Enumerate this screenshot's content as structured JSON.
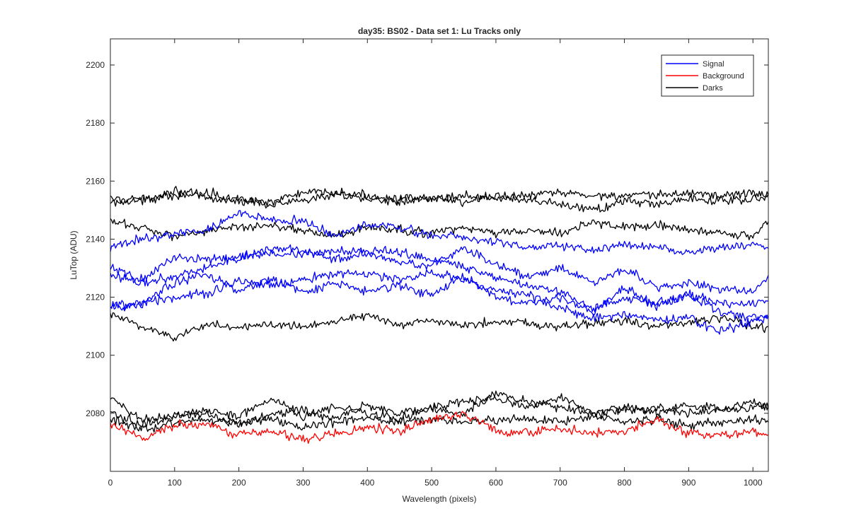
{
  "chart_data": {
    "type": "line",
    "title": "day35: BS02 - Data set 1: Lu Tracks only",
    "xlabel": "Wavelength (pixels)",
    "ylabel": "LuTop (ADU)",
    "xlim": [
      0,
      1024
    ],
    "ylim": [
      2060,
      2209
    ],
    "xticks": [
      0,
      100,
      200,
      300,
      400,
      500,
      600,
      700,
      800,
      900,
      1000
    ],
    "yticks": [
      2080,
      2100,
      2120,
      2140,
      2160,
      2180,
      2200
    ],
    "grid": false,
    "legend_position": "top-right",
    "legend": [
      {
        "name": "Signal",
        "color": "#0000ff"
      },
      {
        "name": "Background",
        "color": "#ff0000"
      },
      {
        "name": "Darks",
        "color": "#000000"
      }
    ],
    "x": [
      0,
      50,
      100,
      150,
      200,
      250,
      300,
      350,
      400,
      450,
      500,
      550,
      600,
      650,
      700,
      750,
      800,
      850,
      900,
      950,
      1000,
      1024
    ],
    "series": [
      {
        "group": "Darks",
        "color": "#000000",
        "values": [
          2154,
          2153,
          2157,
          2154,
          2153,
          2153,
          2156,
          2156,
          2155,
          2154,
          2154,
          2155,
          2154,
          2155,
          2156,
          2155,
          2155,
          2155,
          2156,
          2155,
          2156,
          2155
        ]
      },
      {
        "group": "Darks",
        "color": "#000000",
        "values": [
          2152,
          2154,
          2155,
          2156,
          2154,
          2152,
          2153,
          2155,
          2154,
          2153,
          2154,
          2153,
          2155,
          2153,
          2152,
          2150,
          2153,
          2152,
          2154,
          2153,
          2154,
          2155
        ]
      },
      {
        "group": "Darks",
        "color": "#000000",
        "values": [
          2146,
          2144,
          2141,
          2143,
          2144,
          2145,
          2143,
          2141,
          2144,
          2143,
          2142,
          2144,
          2142,
          2143,
          2142,
          2146,
          2144,
          2145,
          2143,
          2142,
          2141,
          2146
        ]
      },
      {
        "group": "Darks",
        "color": "#000000",
        "values": [
          2114,
          2110,
          2106,
          2111,
          2109,
          2111,
          2110,
          2112,
          2114,
          2110,
          2112,
          2110,
          2112,
          2111,
          2110,
          2111,
          2112,
          2110,
          2111,
          2113,
          2110,
          2109
        ]
      },
      {
        "group": "Darks",
        "color": "#000000",
        "values": [
          2085,
          2078,
          2079,
          2080,
          2076,
          2080,
          2081,
          2078,
          2083,
          2080,
          2082,
          2084,
          2085,
          2082,
          2086,
          2080,
          2081,
          2082,
          2080,
          2081,
          2082,
          2083
        ]
      },
      {
        "group": "Darks",
        "color": "#000000",
        "values": [
          2080,
          2076,
          2079,
          2081,
          2079,
          2085,
          2079,
          2082,
          2080,
          2078,
          2082,
          2080,
          2087,
          2084,
          2082,
          2080,
          2082,
          2080,
          2083,
          2081,
          2084,
          2082
        ]
      },
      {
        "group": "Darks",
        "color": "#000000",
        "values": [
          2078,
          2074,
          2077,
          2078,
          2077,
          2078,
          2075,
          2077,
          2078,
          2077,
          2078,
          2077,
          2078,
          2078,
          2077,
          2079,
          2077,
          2078,
          2076,
          2077,
          2078,
          2077
        ]
      },
      {
        "group": "Background",
        "color": "#ff0000",
        "values": [
          2076,
          2071,
          2076,
          2076,
          2073,
          2074,
          2071,
          2073,
          2075,
          2074,
          2078,
          2080,
          2074,
          2073,
          2075,
          2073,
          2074,
          2078,
          2073,
          2072,
          2074,
          2072
        ]
      },
      {
        "group": "Signal",
        "color": "#0000ff",
        "values": [
          2137,
          2140,
          2142,
          2143,
          2149,
          2147,
          2146,
          2141,
          2145,
          2144,
          2141,
          2141,
          2139,
          2137,
          2138,
          2136,
          2138,
          2137,
          2135,
          2137,
          2138,
          2137
        ]
      },
      {
        "group": "Signal",
        "color": "#0000ff",
        "values": [
          2130,
          2126,
          2134,
          2133,
          2133,
          2137,
          2136,
          2133,
          2135,
          2132,
          2131,
          2137,
          2131,
          2127,
          2130,
          2125,
          2130,
          2123,
          2125,
          2123,
          2122,
          2127
        ]
      },
      {
        "group": "Signal",
        "color": "#0000ff",
        "values": [
          2128,
          2125,
          2127,
          2130,
          2134,
          2135,
          2135,
          2136,
          2136,
          2136,
          2133,
          2131,
          2127,
          2124,
          2122,
          2116,
          2120,
          2118,
          2121,
          2118,
          2118,
          2119
        ]
      },
      {
        "group": "Signal",
        "color": "#0000ff",
        "values": [
          2117,
          2118,
          2125,
          2128,
          2122,
          2126,
          2122,
          2125,
          2122,
          2124,
          2121,
          2127,
          2120,
          2118,
          2120,
          2115,
          2123,
          2117,
          2121,
          2115,
          2113,
          2113
        ]
      },
      {
        "group": "Signal",
        "color": "#0000ff",
        "values": [
          2116,
          2118,
          2120,
          2121,
          2126,
          2124,
          2126,
          2128,
          2128,
          2126,
          2128,
          2126,
          2122,
          2121,
          2116,
          2113,
          2114,
          2112,
          2113,
          2108,
          2112,
          2113
        ]
      }
    ]
  }
}
